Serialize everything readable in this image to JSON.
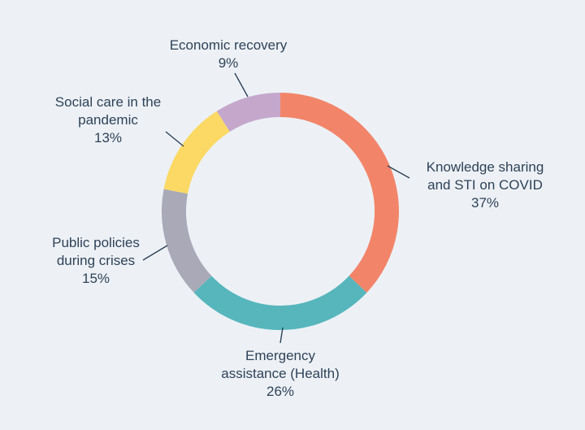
{
  "page": {
    "background_color": "#edf1f6",
    "text_color": "#2e4257"
  },
  "chart_data": {
    "type": "pie",
    "subtype": "donut",
    "title": "",
    "direction": "clockwise",
    "start_angle_deg": 0,
    "legend_position": "outside-labels-with-leader-lines",
    "grid": false,
    "categories": [
      "Knowledge sharing and STI on COVID",
      "Emergency assistance (Health)",
      "Public policies during crises",
      "Social care in the pandemic",
      "Economic recovery"
    ],
    "values": [
      37,
      26,
      15,
      13,
      9
    ],
    "segments": [
      {
        "label": "Knowledge sharing and STI on COVID",
        "label_lines": [
          "Knowledge sharing",
          "and STI on COVID"
        ],
        "value": 37,
        "pct_label": "37%",
        "color": "#f28569"
      },
      {
        "label": "Emergency assistance (Health)",
        "label_lines": [
          "Emergency",
          "assistance (Health)"
        ],
        "value": 26,
        "pct_label": "26%",
        "color": "#56b6bc"
      },
      {
        "label": "Public policies during crises",
        "label_lines": [
          "Public policies",
          "during crises"
        ],
        "value": 15,
        "pct_label": "15%",
        "color": "#a9a9b8"
      },
      {
        "label": "Social care in the pandemic",
        "label_lines": [
          "Social care in the",
          "pandemic"
        ],
        "value": 13,
        "pct_label": "13%",
        "color": "#fbd964"
      },
      {
        "label": "Economic recovery",
        "label_lines": [
          "Economic recovery"
        ],
        "value": 9,
        "pct_label": "9%",
        "color": "#c5a7cc"
      }
    ]
  }
}
